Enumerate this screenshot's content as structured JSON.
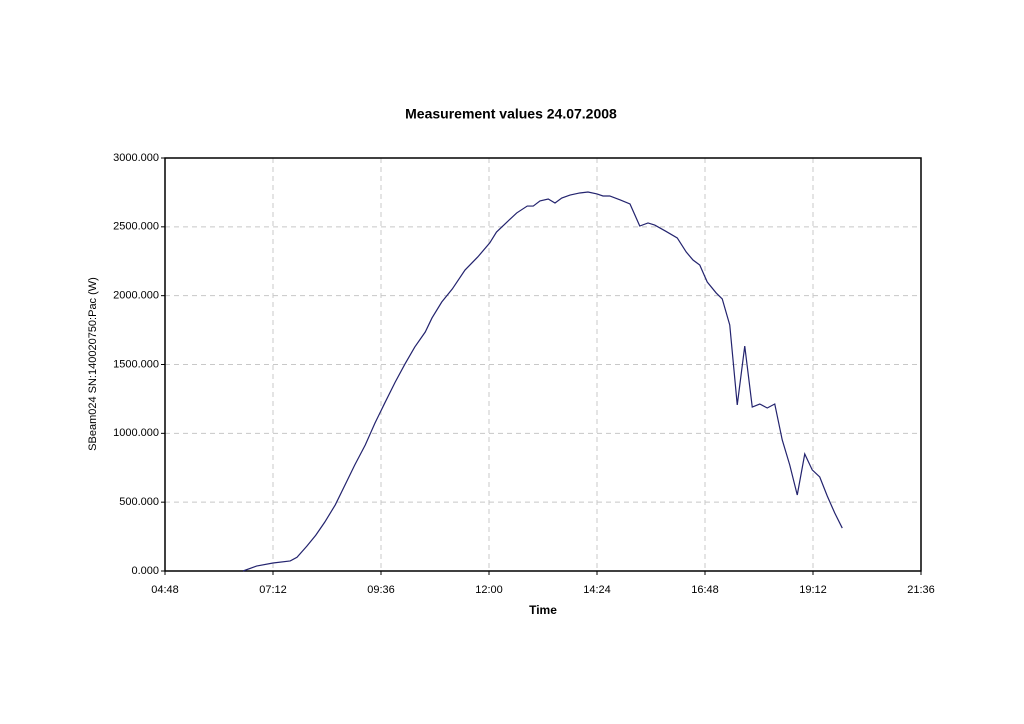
{
  "chart_data": {
    "type": "line",
    "title": "Measurement values 24.07.2008",
    "x_label": "Time",
    "y_label": "SBeam024 SN:140020750:Pac (W)",
    "color": "#23236e",
    "grid": true,
    "x": [
      392,
      410,
      432,
      455,
      464,
      477,
      489,
      501,
      515,
      528,
      541,
      555,
      568,
      581,
      595,
      608,
      621,
      635,
      644,
      657,
      671,
      688,
      705,
      721,
      730,
      744,
      757,
      771,
      779,
      788,
      799,
      808,
      817,
      828,
      841,
      852,
      864,
      872,
      881,
      895,
      908,
      921,
      932,
      941,
      955,
      971,
      983,
      992,
      1001,
      1011,
      1023,
      1031,
      1041,
      1051,
      1061,
      1071,
      1081,
      1091,
      1101,
      1111,
      1121,
      1131,
      1141,
      1151,
      1161,
      1171,
      1181,
      1191
    ],
    "values": [
      0,
      36,
      58,
      73,
      100,
      180,
      260,
      355,
      480,
      625,
      770,
      915,
      1075,
      1220,
      1373,
      1504,
      1627,
      1736,
      1838,
      1954,
      2048,
      2186,
      2281,
      2383,
      2462,
      2535,
      2601,
      2651,
      2651,
      2688,
      2702,
      2673,
      2709,
      2731,
      2746,
      2753,
      2739,
      2724,
      2724,
      2695,
      2666,
      2506,
      2528,
      2513,
      2470,
      2419,
      2317,
      2259,
      2223,
      2099,
      2019,
      1976,
      1787,
      1206,
      1634,
      1191,
      1213,
      1184,
      1213,
      952,
      770,
      552,
      850,
      734,
      683,
      545,
      421,
      312
    ],
    "xlim": [
      288,
      1296
    ],
    "xticks": [
      {
        "value": 288,
        "label": "04:48"
      },
      {
        "value": 432,
        "label": "07:12"
      },
      {
        "value": 576,
        "label": "09:36"
      },
      {
        "value": 720,
        "label": "12:00"
      },
      {
        "value": 864,
        "label": "14:24"
      },
      {
        "value": 1008,
        "label": "16:48"
      },
      {
        "value": 1152,
        "label": "19:12"
      },
      {
        "value": 1296,
        "label": "21:36"
      }
    ],
    "ylim": [
      0,
      3000
    ],
    "yticks": [
      {
        "value": 0,
        "label": "0.000"
      },
      {
        "value": 500,
        "label": "500.000"
      },
      {
        "value": 1000,
        "label": "1000.000"
      },
      {
        "value": 1500,
        "label": "1500.000"
      },
      {
        "value": 2000,
        "label": "2000.000"
      },
      {
        "value": 2500,
        "label": "2500.000"
      },
      {
        "value": 3000,
        "label": "3000.000"
      }
    ]
  }
}
